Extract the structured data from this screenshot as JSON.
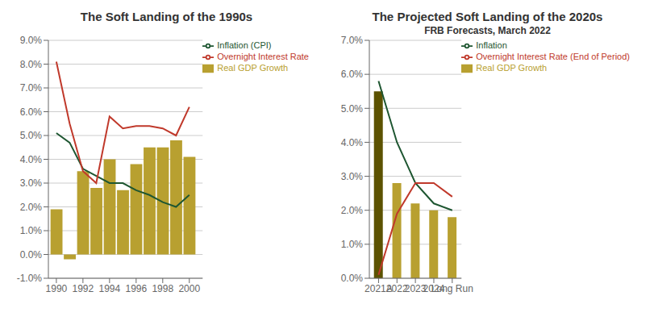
{
  "chart_data": [
    {
      "type": "bar",
      "title": "The Soft Landing of the 1990s",
      "x": [
        1990,
        1991,
        1992,
        1993,
        1994,
        1995,
        1996,
        1997,
        1998,
        1999,
        2000
      ],
      "series": [
        {
          "name": "Real GDP Growth",
          "type": "bar",
          "color": "#B8A030",
          "values": [
            1.9,
            -0.2,
            3.5,
            2.8,
            4.0,
            2.7,
            3.8,
            4.5,
            4.5,
            4.8,
            4.1
          ]
        },
        {
          "name": "Inflation (CPI)",
          "type": "line",
          "color": "#1E5631",
          "values": [
            5.1,
            4.7,
            3.6,
            3.3,
            3.0,
            3.0,
            2.7,
            2.5,
            2.2,
            2.0,
            2.5
          ]
        },
        {
          "name": "Overnight Interest Rate",
          "type": "line",
          "color": "#C0392B",
          "values": [
            8.1,
            5.5,
            3.5,
            3.0,
            5.8,
            5.3,
            5.4,
            5.4,
            5.3,
            5.0,
            6.2
          ]
        }
      ],
      "xlim": [
        1989.4,
        2001.0
      ],
      "xticks": [
        1990,
        1992,
        1994,
        1996,
        1998,
        2000
      ],
      "ylim": [
        -1.0,
        9.0
      ],
      "yticks": [
        {
          "value": -1.0,
          "label": "-1.0%"
        },
        {
          "value": 0.0,
          "label": "0.0%"
        },
        {
          "value": 1.0,
          "label": "1.0%"
        },
        {
          "value": 2.0,
          "label": "2.0%"
        },
        {
          "value": 3.0,
          "label": "3.0%"
        },
        {
          "value": 4.0,
          "label": "4.0%"
        },
        {
          "value": 5.0,
          "label": "5.0%"
        },
        {
          "value": 6.0,
          "label": "6.0%"
        },
        {
          "value": 7.0,
          "label": "7.0%"
        },
        {
          "value": 8.0,
          "label": "8.0%"
        },
        {
          "value": 9.0,
          "label": "9.0%"
        }
      ],
      "grid": true,
      "legend": "upper right"
    },
    {
      "type": "bar",
      "title": "The Projected Soft Landing of the 2020s",
      "subtitle": "FRB Forecasts, March 2022",
      "categories": [
        "2021A",
        "2022",
        "2023",
        "2024",
        "Long Run"
      ],
      "series": [
        {
          "name": "Real GDP Growth",
          "type": "bar",
          "color": "#B8A030",
          "colors": [
            "#5C5200",
            "#B8A030",
            "#B8A030",
            "#B8A030",
            "#B8A030"
          ],
          "values": [
            5.5,
            2.8,
            2.2,
            2.0,
            1.8
          ]
        },
        {
          "name": "Inflation",
          "type": "line",
          "color": "#1E5631",
          "values": [
            5.8,
            4.0,
            2.8,
            2.2,
            2.0
          ]
        },
        {
          "name": "Overnight Interest Rate (End of Period)",
          "type": "line",
          "color": "#C0392B",
          "values": [
            0.1,
            1.9,
            2.8,
            2.8,
            2.4
          ]
        }
      ],
      "ylim": [
        0.0,
        7.0
      ],
      "yticks": [
        {
          "value": 0.0,
          "label": "0.0%"
        },
        {
          "value": 1.0,
          "label": "1.0%"
        },
        {
          "value": 2.0,
          "label": "2.0%"
        },
        {
          "value": 3.0,
          "label": "3.0%"
        },
        {
          "value": 4.0,
          "label": "4.0%"
        },
        {
          "value": 5.0,
          "label": "5.0%"
        },
        {
          "value": 6.0,
          "label": "6.0%"
        },
        {
          "value": 7.0,
          "label": "7.0%"
        }
      ],
      "grid": true,
      "legend": "upper right"
    }
  ]
}
